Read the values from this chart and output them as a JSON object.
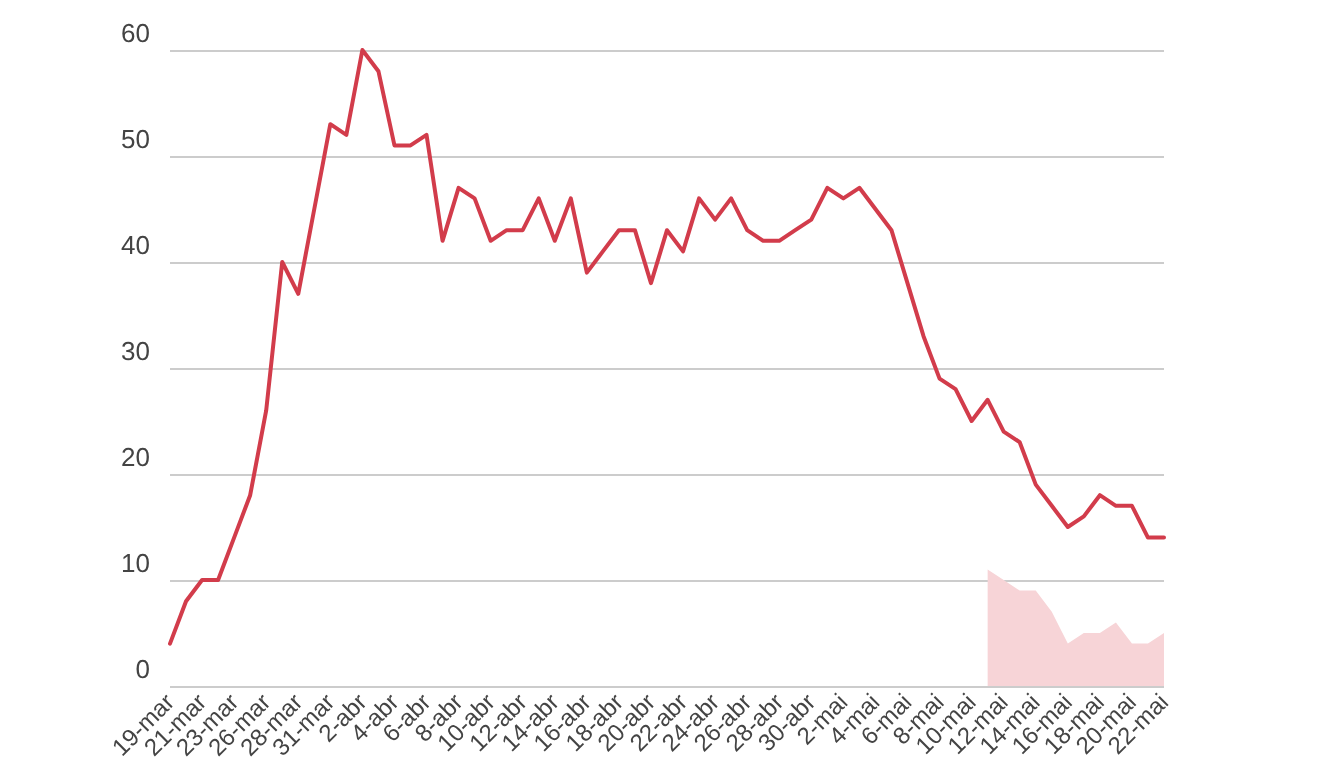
{
  "chart_data": {
    "type": "line",
    "categories": [
      "19-mar",
      null,
      "21-mar",
      null,
      "23-mar",
      null,
      "26-mar",
      null,
      "28-mar",
      null,
      "31-mar",
      null,
      "2-abr",
      null,
      "4-abr",
      null,
      "6-abr",
      null,
      "8-abr",
      null,
      "10-abr",
      null,
      "12-abr",
      null,
      "14-abr",
      null,
      "16-abr",
      null,
      "18-abr",
      null,
      "20-abr",
      null,
      "22-abr",
      null,
      "24-abr",
      null,
      "26-abr",
      null,
      "28-abr",
      null,
      "30-abr",
      null,
      "2-mai",
      null,
      "4-mai",
      null,
      "6-mai",
      null,
      "8-mai",
      null,
      "10-mai",
      null,
      "12-mai",
      null,
      "14-mai",
      null,
      "16-mai",
      null,
      "18-mai",
      null,
      "20-mai",
      null,
      "22-mai"
    ],
    "series": [
      {
        "color": "#d23c4b",
        "values": [
          4,
          8,
          10,
          10,
          14,
          18,
          26,
          40,
          37,
          45,
          53,
          52,
          60,
          58,
          51,
          51,
          52,
          42,
          47,
          46,
          42,
          43,
          43,
          46,
          42,
          46,
          39,
          41,
          43,
          43,
          38,
          43,
          41,
          46,
          44,
          46,
          43,
          42,
          42,
          43,
          44,
          47,
          46,
          47,
          45,
          43,
          38,
          33,
          29,
          28,
          25,
          27,
          24,
          23,
          19,
          17,
          15,
          16,
          18,
          17,
          17,
          14,
          14
        ]
      },
      {
        "type": "area",
        "color": "#f7d4d7",
        "values": [
          null,
          null,
          null,
          null,
          null,
          null,
          null,
          null,
          null,
          null,
          null,
          null,
          null,
          null,
          null,
          null,
          null,
          null,
          null,
          null,
          null,
          null,
          null,
          null,
          null,
          null,
          null,
          null,
          null,
          null,
          null,
          null,
          null,
          null,
          null,
          null,
          null,
          null,
          null,
          null,
          null,
          null,
          null,
          null,
          null,
          null,
          null,
          null,
          null,
          null,
          null,
          11,
          10,
          9,
          9,
          7,
          4,
          5,
          5,
          6,
          4,
          4,
          5
        ]
      }
    ],
    "ylim": [
      0,
      60
    ],
    "yticks": [
      0,
      10,
      20,
      30,
      40,
      50,
      60
    ],
    "grid": "y",
    "marker": "none",
    "line_style": "solid"
  }
}
